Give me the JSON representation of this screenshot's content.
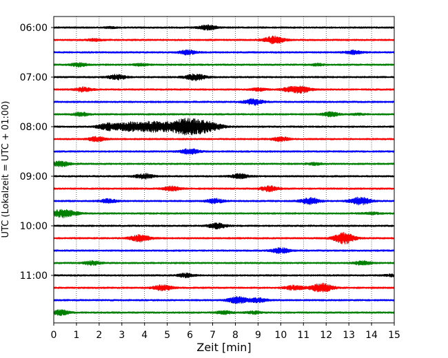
{
  "chart_data": {
    "type": "line",
    "title": "",
    "xlabel": "Zeit  [min]",
    "ylabel": "UTC (Lokalzeit = UTC + 01:00)",
    "xlim": [
      0,
      15
    ],
    "xticks": [
      0,
      1,
      2,
      3,
      4,
      5,
      6,
      7,
      8,
      9,
      10,
      11,
      12,
      13,
      14,
      15
    ],
    "grid": "vertical-dotted",
    "ytick_labels": [
      "06:00",
      "07:00",
      "08:00",
      "09:00",
      "10:00",
      "11:00"
    ],
    "ytick_rows": [
      0,
      4,
      8,
      12,
      16,
      20
    ],
    "trace_interval_min": 15,
    "trace_count": 24,
    "color_cycle": [
      "#000000",
      "#ff0000",
      "#0000ff",
      "#008000"
    ],
    "series": [
      {
        "name": "06:00",
        "color": "#000000",
        "events": [
          [
            6.8,
            3.2
          ],
          [
            2.5,
            0.8
          ]
        ]
      },
      {
        "name": "06:15",
        "color": "#ff0000",
        "events": [
          [
            9.7,
            5.0
          ],
          [
            1.8,
            1.4
          ]
        ]
      },
      {
        "name": "06:30",
        "color": "#0000ff",
        "events": [
          [
            5.9,
            3.0
          ],
          [
            13.2,
            2.5
          ]
        ]
      },
      {
        "name": "06:45",
        "color": "#008000",
        "events": [
          [
            1.1,
            2.4
          ],
          [
            3.8,
            1.5
          ],
          [
            11.6,
            1.3
          ]
        ]
      },
      {
        "name": "07:00",
        "color": "#000000",
        "events": [
          [
            2.8,
            3.4
          ],
          [
            6.3,
            4.0
          ],
          [
            5.9,
            1.0
          ]
        ]
      },
      {
        "name": "07:15",
        "color": "#ff0000",
        "events": [
          [
            1.3,
            3.0
          ],
          [
            9.0,
            1.8
          ],
          [
            10.4,
            2.6
          ],
          [
            10.9,
            4.2
          ]
        ]
      },
      {
        "name": "07:30",
        "color": "#0000ff",
        "events": [
          [
            8.8,
            4.2
          ]
        ]
      },
      {
        "name": "07:45",
        "color": "#008000",
        "events": [
          [
            1.2,
            2.6
          ],
          [
            12.2,
            2.8
          ],
          [
            13.4,
            1.0
          ]
        ]
      },
      {
        "name": "08:00",
        "color": "#000000",
        "events": [
          [
            2.4,
            4.8
          ],
          [
            3.3,
            6.0
          ],
          [
            3.9,
            3.2
          ],
          [
            4.3,
            4.5
          ],
          [
            4.7,
            4.0
          ],
          [
            5.1,
            3.0
          ],
          [
            5.6,
            5.2
          ],
          [
            6.1,
            9.5
          ],
          [
            6.7,
            4.2
          ],
          [
            7.2,
            3.0
          ]
        ]
      },
      {
        "name": "08:15",
        "color": "#ff0000",
        "events": [
          [
            1.9,
            3.0
          ],
          [
            10.0,
            3.0
          ]
        ]
      },
      {
        "name": "08:30",
        "color": "#0000ff",
        "events": [
          [
            6.0,
            3.6
          ]
        ]
      },
      {
        "name": "08:45",
        "color": "#008000",
        "events": [
          [
            0.3,
            3.6
          ],
          [
            11.5,
            1.6
          ]
        ]
      },
      {
        "name": "09:00",
        "color": "#000000",
        "events": [
          [
            4.0,
            3.5
          ],
          [
            8.2,
            3.2
          ]
        ]
      },
      {
        "name": "09:15",
        "color": "#ff0000",
        "events": [
          [
            5.2,
            3.0
          ],
          [
            9.5,
            3.6
          ]
        ]
      },
      {
        "name": "09:30",
        "color": "#0000ff",
        "events": [
          [
            2.4,
            2.6
          ],
          [
            7.1,
            3.0
          ],
          [
            11.3,
            4.4
          ],
          [
            13.5,
            5.0
          ]
        ]
      },
      {
        "name": "09:45",
        "color": "#008000",
        "events": [
          [
            0.3,
            5.0
          ],
          [
            0.8,
            2.4
          ],
          [
            14.0,
            1.4
          ]
        ]
      },
      {
        "name": "10:00",
        "color": "#000000",
        "events": [
          [
            7.2,
            3.6
          ]
        ]
      },
      {
        "name": "10:15",
        "color": "#ff0000",
        "events": [
          [
            3.8,
            4.6
          ],
          [
            12.7,
            4.4
          ],
          [
            12.9,
            3.8
          ]
        ]
      },
      {
        "name": "10:30",
        "color": "#0000ff",
        "events": [
          [
            10.0,
            3.6
          ]
        ]
      },
      {
        "name": "10:45",
        "color": "#008000",
        "events": [
          [
            1.7,
            2.8
          ],
          [
            13.6,
            2.8
          ]
        ]
      },
      {
        "name": "11:00",
        "color": "#000000",
        "events": [
          [
            5.8,
            2.6
          ],
          [
            14.9,
            1.2
          ]
        ]
      },
      {
        "name": "11:15",
        "color": "#ff0000",
        "events": [
          [
            4.8,
            3.8
          ],
          [
            10.6,
            3.2
          ],
          [
            11.8,
            6.0
          ]
        ]
      },
      {
        "name": "11:30",
        "color": "#0000ff",
        "events": [
          [
            8.1,
            4.4
          ],
          [
            9.0,
            3.0
          ]
        ]
      },
      {
        "name": "11:45",
        "color": "#008000",
        "events": [
          [
            0.3,
            3.4
          ],
          [
            7.5,
            2.2
          ],
          [
            8.8,
            1.8
          ]
        ]
      }
    ]
  }
}
